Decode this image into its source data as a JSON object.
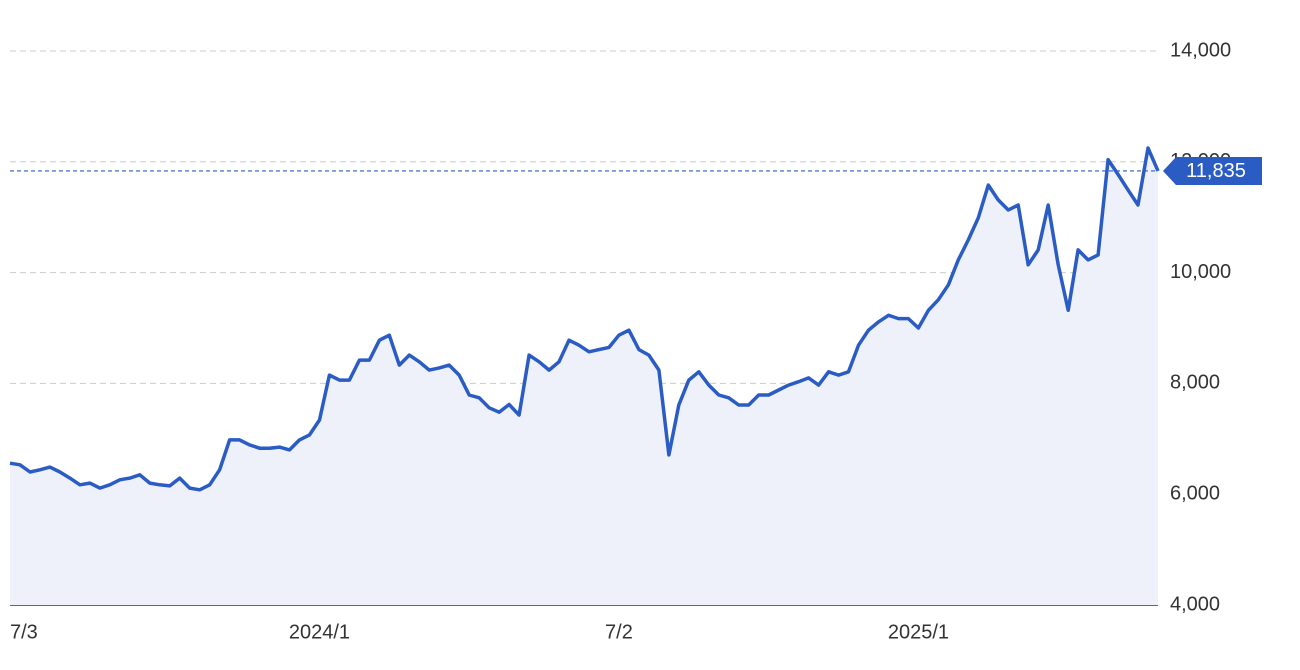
{
  "chart_data": {
    "type": "line",
    "categories": [
      "7/3",
      null,
      null,
      null,
      null,
      null,
      null,
      null,
      null,
      null,
      null,
      null,
      null,
      null,
      null,
      null,
      null,
      null,
      null,
      null,
      null,
      null,
      null,
      null,
      null,
      null,
      null,
      null,
      null,
      null,
      null,
      "2024/1",
      null,
      null,
      null,
      null,
      null,
      null,
      null,
      null,
      null,
      null,
      null,
      null,
      null,
      null,
      null,
      null,
      null,
      null,
      null,
      null,
      null,
      null,
      null,
      null,
      null,
      null,
      null,
      null,
      null,
      "7/2",
      null,
      null,
      null,
      null,
      null,
      null,
      null,
      null,
      null,
      null,
      null,
      null,
      null,
      null,
      null,
      null,
      null,
      null,
      null,
      null,
      null,
      null,
      null,
      null,
      null,
      null,
      null,
      null,
      null,
      "2025/1",
      null,
      null,
      null,
      null,
      null,
      null,
      null,
      null,
      null,
      null,
      null,
      null,
      null,
      null,
      null,
      null,
      null,
      null,
      null,
      null,
      null,
      null,
      null,
      null
    ],
    "series": [
      {
        "color": "#2a5cc4",
        "area_color": "#eef1fa",
        "values": [
          6560,
          6530,
          6400,
          6440,
          6490,
          6400,
          6290,
          6170,
          6200,
          6110,
          6170,
          6260,
          6290,
          6350,
          6200,
          6170,
          6150,
          6290,
          6110,
          6080,
          6170,
          6440,
          6980,
          6980,
          6890,
          6830,
          6830,
          6850,
          6800,
          6980,
          7070,
          7340,
          8150,
          8060,
          8060,
          8420,
          8420,
          8780,
          8870,
          8330,
          8510,
          8390,
          8240,
          8280,
          8330,
          8150,
          7790,
          7740,
          7560,
          7480,
          7620,
          7430,
          8510,
          8390,
          8240,
          8390,
          8780,
          8690,
          8570,
          8610,
          8650,
          8870,
          8960,
          8610,
          8510,
          8240,
          6710,
          7610,
          8060,
          8210,
          7970,
          7790,
          7740,
          7610,
          7610,
          7790,
          7790,
          7880,
          7970,
          8030,
          8100,
          7970,
          8210,
          8150,
          8210,
          8690,
          8960,
          9110,
          9230,
          9170,
          9170,
          9000,
          9320,
          9510,
          9780,
          10230,
          10590,
          10990,
          11580,
          11310,
          11130,
          11220,
          10140,
          10410,
          11220,
          10140,
          9320,
          10410,
          10230,
          10320,
          12040,
          11770,
          11490,
          11220,
          12250,
          11835
        ]
      }
    ],
    "current": {
      "value": 11835,
      "label": "11,835"
    },
    "ylim": [
      4000,
      14000
    ],
    "yticks": [
      {
        "value": 4000,
        "label": "4,000"
      },
      {
        "value": 6000,
        "label": "6,000"
      },
      {
        "value": 8000,
        "label": "8,000"
      },
      {
        "value": 10000,
        "label": "10,000"
      },
      {
        "value": 12000,
        "label": "12,000"
      },
      {
        "value": 14000,
        "label": "14,000"
      }
    ],
    "grid": true
  }
}
